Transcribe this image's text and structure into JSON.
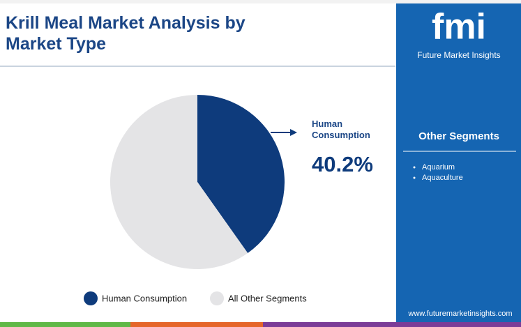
{
  "chart_data": {
    "type": "pie",
    "title": "Krill Meal Market Analysis by Market Type",
    "categories": [
      "Human Consumption",
      "All Other Segments"
    ],
    "values": [
      40.2,
      59.8
    ],
    "value_labels": [
      "40.2%",
      null
    ],
    "colors": [
      "#0e3b7c",
      "#e4e4e6"
    ]
  },
  "brand": {
    "logo": "fmi",
    "name": "Future Market Insights",
    "url": "www.futuremarketinsights.com"
  },
  "sidebar": {
    "heading": "Other Segments",
    "items": [
      "Aquarium",
      "Aquaculture"
    ]
  }
}
